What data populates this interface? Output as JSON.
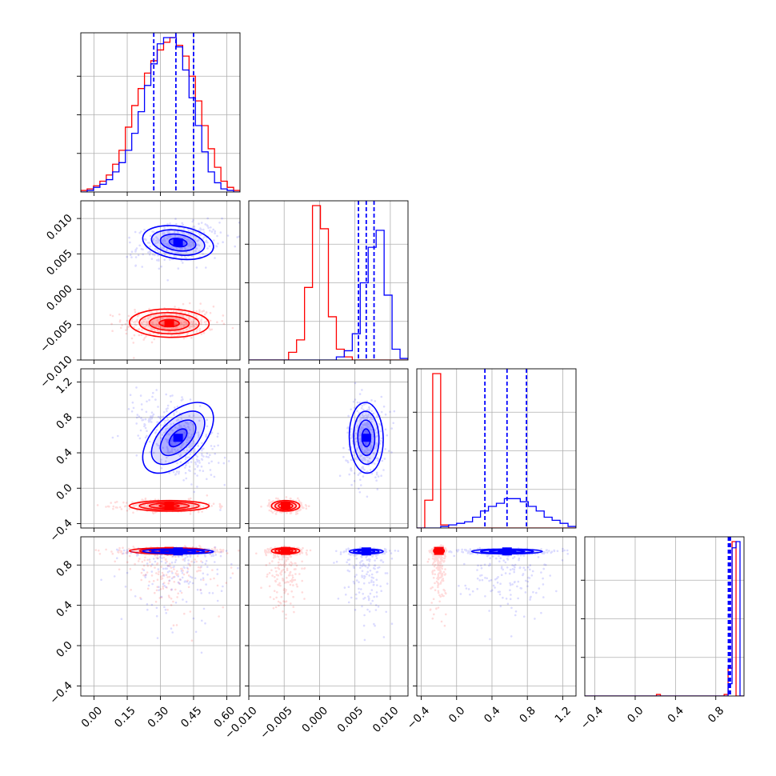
{
  "colors": {
    "red": "#ff0000",
    "blue": "#0000ff",
    "grid": "#b0b0b0",
    "axis": "#000000"
  },
  "chart_data": {
    "type": "corner",
    "title": "",
    "dimensions": 4,
    "grid": true,
    "ranges": [
      [
        -0.06,
        0.66
      ],
      [
        -0.01,
        0.0125
      ],
      [
        -0.45,
        1.35
      ],
      [
        -0.5,
        1.08
      ]
    ],
    "tick_labels": [
      [
        "0.00",
        "0.15",
        "0.30",
        "0.45",
        "0.60"
      ],
      [
        "−0.010",
        "−0.005",
        "0.000",
        "0.005",
        "0.010"
      ],
      [
        "−0.4",
        "0.0",
        "0.4",
        "0.8",
        "1.2"
      ],
      [
        "−0.4",
        "0.0",
        "0.4",
        "0.8"
      ]
    ],
    "tick_values": [
      [
        0.0,
        0.15,
        0.3,
        0.45,
        0.6
      ],
      [
        -0.01,
        -0.005,
        0.0,
        0.005,
        0.01
      ],
      [
        -0.4,
        0.0,
        0.4,
        0.8,
        1.2
      ],
      [
        -0.4,
        0.0,
        0.4,
        0.8
      ]
    ],
    "quantiles_blue": [
      [
        0.27,
        0.37,
        0.45
      ],
      [
        0.0055,
        0.0066,
        0.0077
      ],
      [
        0.32,
        0.57,
        0.79
      ],
      [
        0.925,
        0.935,
        0.945
      ]
    ],
    "series": [
      {
        "color": "red",
        "means": [
          0.34,
          -0.0048,
          -0.2,
          0.94
        ],
        "sds": [
          0.09,
          0.001,
          0.03,
          0.015
        ],
        "hist": [
          [
            0.01,
            0.02,
            0.04,
            0.07,
            0.11,
            0.18,
            0.27,
            0.42,
            0.56,
            0.67,
            0.77,
            0.85,
            0.92,
            0.97,
            1.0,
            0.95,
            0.88,
            0.75,
            0.59,
            0.43,
            0.28,
            0.16,
            0.07,
            0.03,
            0.01
          ],
          [
            0.0,
            0.0,
            0.0,
            0.0,
            0.0,
            0.05,
            0.13,
            0.47,
            1.0,
            0.85,
            0.28,
            0.07,
            0.02,
            0.0,
            0.0,
            0.0,
            0.0,
            0.0,
            0.0,
            0.0
          ],
          [
            0.0,
            0.18,
            1.0,
            0.02,
            0.0,
            0.0,
            0.0,
            0.0,
            0.0,
            0.0,
            0.0,
            0.0,
            0.0,
            0.0,
            0.0,
            0.0,
            0.0,
            0.0,
            0.0,
            0.0
          ],
          [
            0.0,
            0.0,
            0.0,
            0.0,
            0.0,
            0.0,
            0.0,
            0.0,
            0.0,
            0.0,
            0.0,
            0.0,
            0.0,
            0.0,
            0.0,
            0.0,
            0.0,
            0.0,
            0.01,
            0.0,
            0.0,
            0.0,
            0.0,
            0.0,
            0.0,
            0.0,
            0.0,
            0.0,
            0.0,
            0.0,
            0.0,
            0.0,
            0.0,
            0.0,
            0.0,
            0.01,
            0.18,
            1.0,
            0.0,
            0.0
          ]
        ]
      },
      {
        "color": "blue",
        "means": [
          0.38,
          0.0066,
          0.57,
          0.935
        ],
        "sds": [
          0.08,
          0.0012,
          0.2,
          0.012
        ],
        "hist": [
          [
            0.0,
            0.01,
            0.03,
            0.05,
            0.08,
            0.13,
            0.19,
            0.27,
            0.38,
            0.52,
            0.69,
            0.83,
            0.96,
            1.0,
            1.0,
            0.94,
            0.79,
            0.61,
            0.43,
            0.26,
            0.13,
            0.06,
            0.02,
            0.01,
            0.0
          ],
          [
            0.0,
            0.0,
            0.0,
            0.0,
            0.0,
            0.0,
            0.0,
            0.0,
            0.0,
            0.0,
            0.0,
            0.02,
            0.06,
            0.17,
            0.5,
            0.73,
            0.84,
            0.42,
            0.07,
            0.01
          ],
          [
            0.0,
            0.0,
            0.0,
            0.01,
            0.02,
            0.03,
            0.04,
            0.07,
            0.11,
            0.14,
            0.16,
            0.19,
            0.19,
            0.17,
            0.14,
            0.11,
            0.07,
            0.05,
            0.03,
            0.01
          ],
          [
            0.0,
            0.0,
            0.0,
            0.0,
            0.0,
            0.0,
            0.0,
            0.0,
            0.0,
            0.0,
            0.0,
            0.0,
            0.0,
            0.0,
            0.0,
            0.0,
            0.0,
            0.0,
            0.0,
            0.0,
            0.0,
            0.0,
            0.0,
            0.0,
            0.0,
            0.0,
            0.0,
            0.0,
            0.0,
            0.0,
            0.0,
            0.0,
            0.0,
            0.0,
            0.0,
            0.0,
            0.08,
            0.96,
            1.0,
            0.0
          ]
        ]
      }
    ]
  }
}
